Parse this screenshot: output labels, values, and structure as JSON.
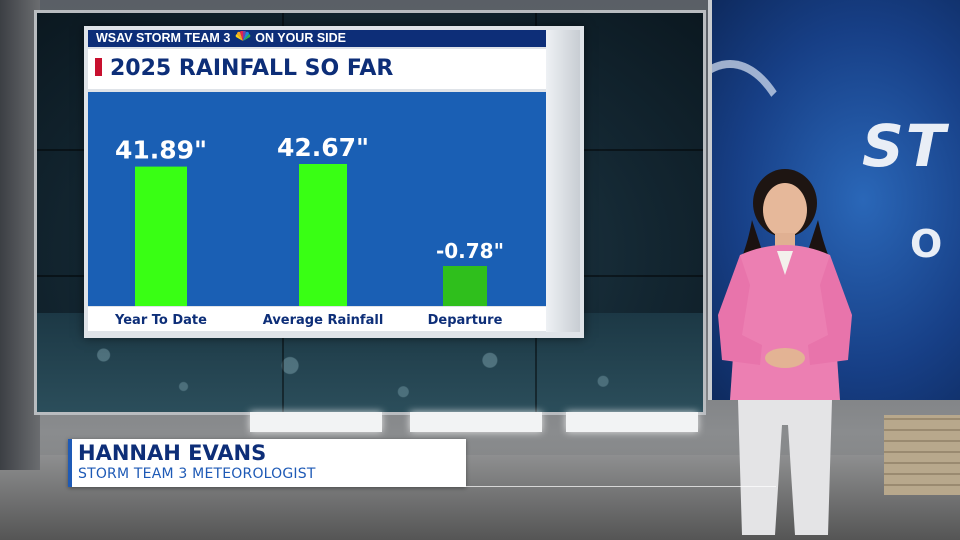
{
  "graphic": {
    "header_left": "WSAV STORM TEAM 3",
    "header_logo": "nbc-peacock-icon",
    "header_right": "ON YOUR SIDE",
    "title": "2025 RAINFALL SO FAR",
    "accent_color": "#c8102e",
    "brand_color": "#0d2e78"
  },
  "chart_data": {
    "type": "bar",
    "categories": [
      "Year To Date",
      "Average Rainfall",
      "Departure"
    ],
    "values": [
      41.89,
      42.67,
      -0.78
    ],
    "data_labels": [
      "41.89\"",
      "42.67\"",
      "-0.78\""
    ],
    "bar_colors": [
      "#39ff14",
      "#39ff14",
      "#2fbf1c"
    ],
    "background_color": "#1a5fb4",
    "grid": false,
    "legend": "none"
  },
  "lower_third": {
    "name": "HANNAH EVANS",
    "title": "STORM TEAM 3 METEOROLOGIST"
  },
  "backdrop": {
    "brand_text_1": "ST",
    "brand_text_2": "O"
  }
}
